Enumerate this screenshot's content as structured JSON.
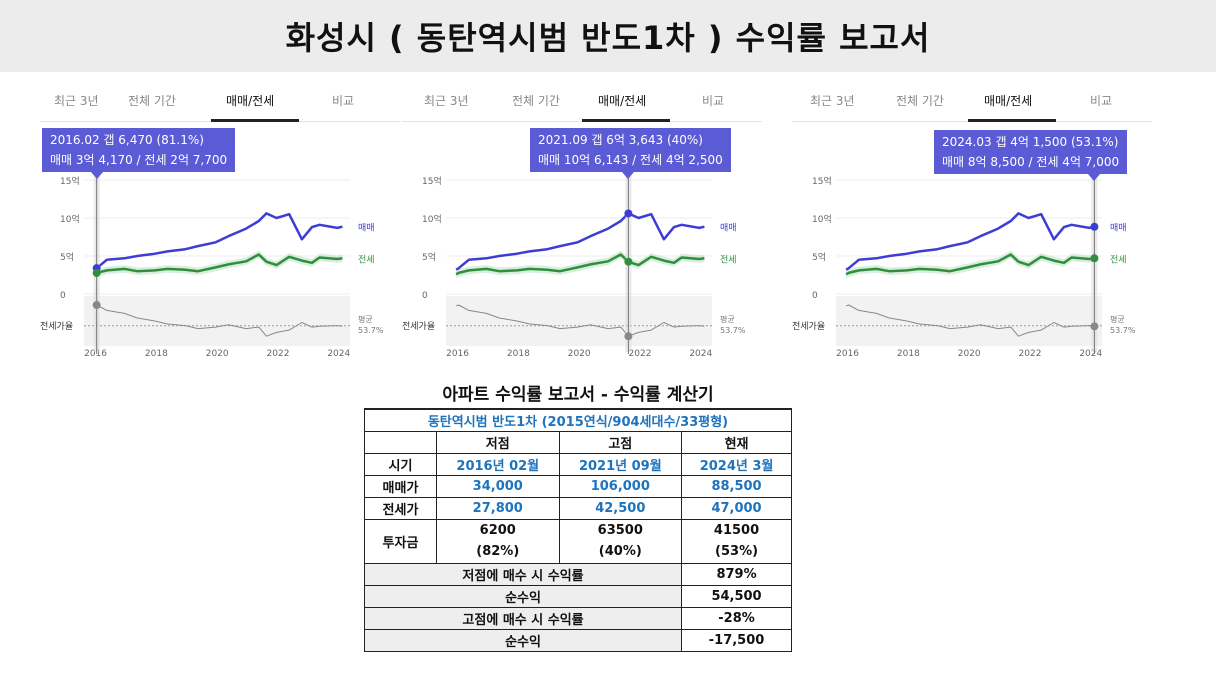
{
  "page": {
    "title": "화성시 ( 동탄역시범 반도1차 ) 수익률 보고서"
  },
  "tabs": [
    "최근 3년",
    "전체 기간",
    "매매/전세",
    "비교"
  ],
  "panels": [
    {
      "tooltip_line1": "2016.02  갭 6,470 (81.1%)",
      "tooltip_line2": "매매 3억 4,170 / 전세 2억 7,700"
    },
    {
      "tooltip_line1": "2021.09  갭 6억 3,643 (40%)",
      "tooltip_line2": "매매 10억 6,143 / 전세 4억 2,500"
    },
    {
      "tooltip_line1": "2024.03  갭 4억 1,500 (53.1%)",
      "tooltip_line2": "매매 8억 8,500 / 전세 4억 7,000"
    }
  ],
  "chart_data": [
    {
      "type": "line",
      "x": [
        "2016.01",
        "2016.02",
        "2016.06",
        "2017.01",
        "2017.06",
        "2018.01",
        "2018.06",
        "2019.01",
        "2019.06",
        "2020.01",
        "2020.06",
        "2021.01",
        "2021.06",
        "2021.09",
        "2022.01",
        "2022.06",
        "2022.11",
        "2023.03",
        "2023.06",
        "2024.01",
        "2024.03"
      ],
      "series": [
        {
          "name": "매매",
          "color": "#3d3dd6",
          "values": [
            3.2,
            3.4,
            4.5,
            4.7,
            5.0,
            5.3,
            5.6,
            5.9,
            6.3,
            6.8,
            7.6,
            8.6,
            9.6,
            10.6,
            10.0,
            10.5,
            7.2,
            8.8,
            9.1,
            8.7,
            8.85
          ]
        },
        {
          "name": "전세",
          "color": "#2f8f3e",
          "values": [
            2.6,
            2.77,
            3.1,
            3.3,
            3.0,
            3.1,
            3.3,
            3.2,
            3.0,
            3.5,
            3.9,
            4.3,
            5.2,
            4.25,
            3.8,
            4.9,
            4.4,
            4.1,
            4.8,
            4.6,
            4.7
          ]
        },
        {
          "name": "전세가율",
          "color": "#888888",
          "values": [
            80,
            81,
            74,
            70,
            64,
            60,
            56,
            54,
            50,
            52,
            55,
            50,
            52,
            40,
            45,
            48,
            58,
            52,
            53,
            54,
            53
          ]
        }
      ],
      "yticks": [
        "0",
        "5억",
        "10억",
        "15억"
      ],
      "ylim": [
        0,
        15
      ],
      "xticks": [
        "2016",
        "2018",
        "2020",
        "2022",
        "2024"
      ],
      "labels": {
        "sale": "매매",
        "jeonse": "전세",
        "ratio": "전세가율",
        "avg": "평균",
        "avg_value": "53.7%"
      },
      "average_ratio": 53.7
    }
  ],
  "calculator": {
    "title": "아파트 수익률 보고서 - 수익률 계산기",
    "subtitle": "동탄역시범 반도1차 (2015연식/904세대수/33평형)",
    "headers": [
      "저점",
      "고점",
      "현재"
    ],
    "row_period": {
      "label": "시기",
      "values": [
        "2016년 02월",
        "2021년 09월",
        "2024년 3월"
      ]
    },
    "row_sale": {
      "label": "매매가",
      "values": [
        "34,000",
        "106,000",
        "88,500"
      ]
    },
    "row_jeonse": {
      "label": "전세가",
      "values": [
        "27,800",
        "42,500",
        "47,000"
      ]
    },
    "row_invest": {
      "label": "투자금",
      "values": [
        "6200",
        "63500",
        "41500"
      ],
      "pcts": [
        "(82%)",
        "(40%)",
        "(53%)"
      ]
    },
    "summary": [
      {
        "label": "저점에 매수 시 수익률",
        "value": "879%"
      },
      {
        "label": "순수익",
        "value": "54,500"
      },
      {
        "label": "고점에 매수 시 수익률",
        "value": "-28%"
      },
      {
        "label": "순수익",
        "value": "-17,500"
      }
    ]
  }
}
